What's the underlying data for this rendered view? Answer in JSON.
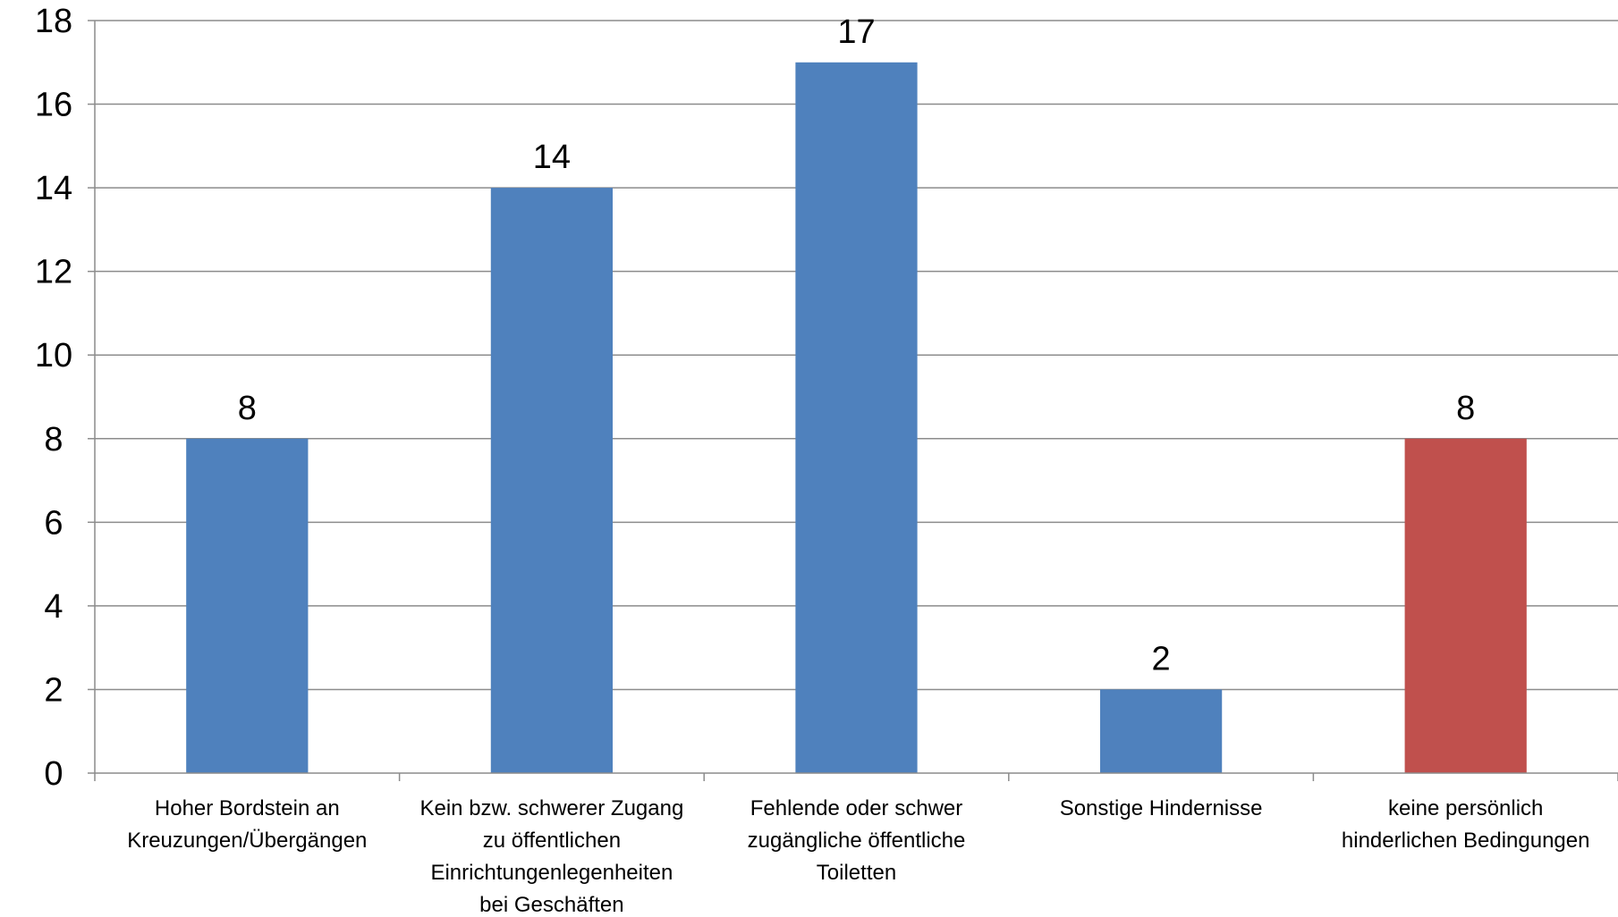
{
  "chart_data": {
    "type": "bar",
    "title": "",
    "xlabel": "",
    "ylabel": "",
    "ylim": [
      0,
      18
    ],
    "yticks": [
      0,
      2,
      4,
      6,
      8,
      10,
      12,
      14,
      16,
      18
    ],
    "grid": true,
    "legend": "none",
    "categories": [
      [
        "Hoher Bordstein an",
        "Kreuzungen/Übergängen"
      ],
      [
        "Kein bzw. schwerer Zugang",
        "zu öffentlichen",
        "Einrichtungenlegenheiten",
        "bei Geschäften"
      ],
      [
        "Fehlende oder schwer",
        "zugängliche öffentliche",
        "Toiletten"
      ],
      [
        "Sonstige Hindernisse"
      ],
      [
        "keine persönlich",
        "hinderlichen Bedingungen"
      ]
    ],
    "values": [
      8,
      14,
      17,
      2,
      8
    ],
    "data_labels": [
      "8",
      "14",
      "17",
      "2",
      "8"
    ],
    "bar_colors": [
      "#4f81bd",
      "#4f81bd",
      "#4f81bd",
      "#4f81bd",
      "#c0504d"
    ]
  }
}
